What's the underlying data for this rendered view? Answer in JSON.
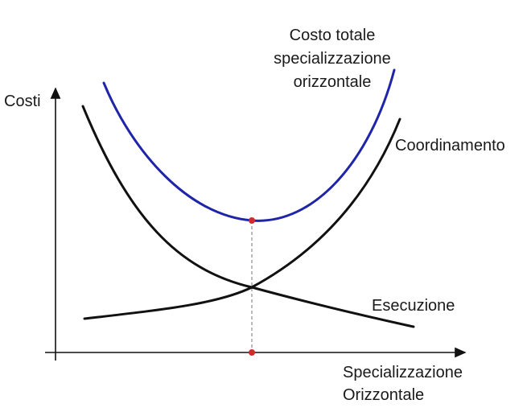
{
  "labels": {
    "y_axis": "Costi",
    "x_axis_line1": "Specializzazione",
    "x_axis_line2": "Orizzontale",
    "total_line1": "Costo totale",
    "total_line2": "specializzazione",
    "total_line3": "orizzontale",
    "coordination": "Coordinamento",
    "execution": "Esecuzione"
  },
  "colors": {
    "total_curve": "#1f24a8",
    "cost_curves": "#111111",
    "optimum_marker": "#d22b2b",
    "guide_line": "#777777"
  }
}
